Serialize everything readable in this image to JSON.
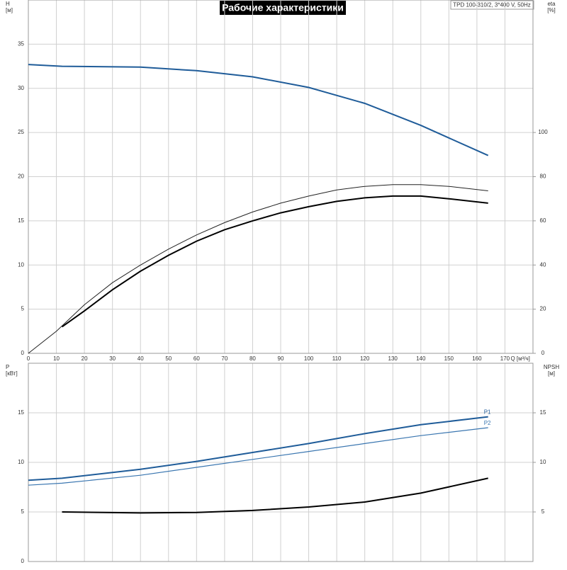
{
  "chart_data": [
    {
      "type": "line",
      "title": "Рабочие характеристики",
      "subtitle": "TPD 100-310/2, 3*400 V, 50Hz",
      "xlabel": "Q [м³/ч]",
      "ylabel": "H",
      "yunit": "[м]",
      "y2label": "eta",
      "y2unit": "[%]",
      "xlim": [
        0,
        180
      ],
      "xticks": [
        0,
        10,
        20,
        30,
        40,
        50,
        60,
        70,
        80,
        90,
        100,
        110,
        120,
        130,
        140,
        150,
        160,
        170
      ],
      "ylim": [
        0,
        40
      ],
      "yticks": [
        0,
        5,
        10,
        15,
        20,
        25,
        30,
        35
      ],
      "y2lim": [
        0,
        160
      ],
      "y2ticks": [
        0,
        20,
        40,
        60,
        80,
        100
      ],
      "grid": true,
      "series": [
        {
          "color": "#1f5c99",
          "width": 2,
          "x": [
            0,
            12,
            40,
            60,
            80,
            100,
            120,
            140,
            164
          ],
          "values": [
            32.7,
            32.5,
            32.4,
            32.0,
            31.3,
            30.1,
            28.3,
            25.8,
            22.4
          ]
        },
        {
          "color": "#222222",
          "width": 1,
          "axis": "y2",
          "x": [
            0,
            10,
            20,
            30,
            40,
            50,
            60,
            70,
            80,
            90,
            100,
            110,
            120,
            130,
            140,
            150,
            164
          ],
          "values": [
            0,
            10,
            22,
            32,
            40,
            47.2,
            53.6,
            59.2,
            64,
            68,
            71.2,
            74,
            75.6,
            76.4,
            76.4,
            75.6,
            73.6
          ]
        },
        {
          "color": "#000000",
          "width": 2,
          "axis": "y2",
          "x": [
            12,
            20,
            30,
            40,
            50,
            60,
            70,
            80,
            90,
            100,
            110,
            120,
            130,
            140,
            150,
            164
          ],
          "values": [
            12,
            19.2,
            28.8,
            37.2,
            44.4,
            50.8,
            56,
            60,
            63.6,
            66.4,
            68.8,
            70.4,
            71.2,
            71.2,
            70,
            68
          ]
        }
      ]
    },
    {
      "type": "line",
      "ylabel": "P",
      "yunit": "[кВт]",
      "y2label": "NPSH",
      "y2unit": "[м]",
      "xlim": [
        0,
        180
      ],
      "ylim": [
        0,
        20
      ],
      "yticks": [
        0,
        5,
        10,
        15
      ],
      "y2lim": [
        0,
        20
      ],
      "y2ticks": [
        5,
        10,
        15
      ],
      "grid": true,
      "series": [
        {
          "name": "P1",
          "color": "#1f5c99",
          "width": 2,
          "x": [
            0,
            12,
            40,
            60,
            80,
            100,
            120,
            140,
            164
          ],
          "values": [
            8.2,
            8.4,
            9.3,
            10.1,
            11.0,
            11.9,
            12.9,
            13.8,
            14.6
          ]
        },
        {
          "name": "P2",
          "color": "#3a76b0",
          "width": 1.2,
          "x": [
            0,
            12,
            40,
            60,
            80,
            100,
            120,
            140,
            164
          ],
          "values": [
            7.7,
            7.9,
            8.7,
            9.5,
            10.3,
            11.1,
            11.9,
            12.7,
            13.5
          ]
        },
        {
          "color": "#000000",
          "width": 2,
          "axis": "y2",
          "x": [
            12,
            40,
            60,
            80,
            100,
            120,
            140,
            164
          ],
          "values": [
            5.0,
            4.9,
            4.95,
            5.15,
            5.5,
            6.0,
            6.9,
            8.4
          ]
        }
      ]
    }
  ]
}
